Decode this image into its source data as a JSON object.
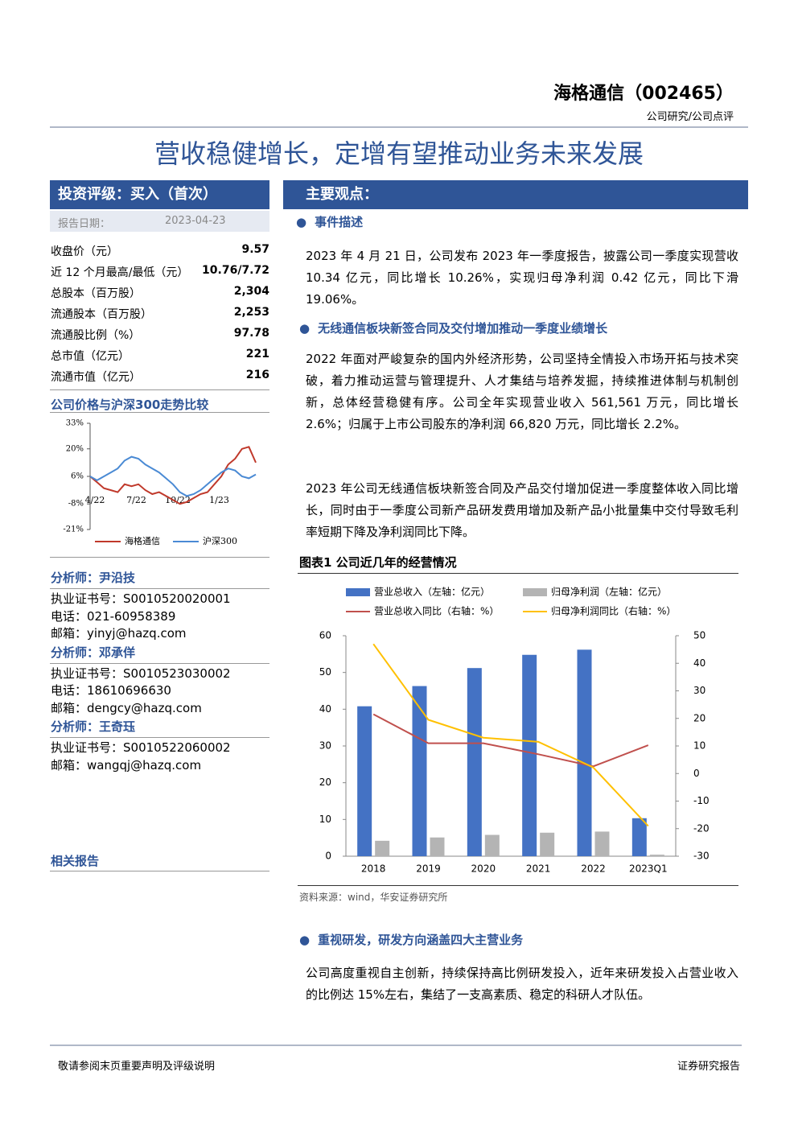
{
  "header": {
    "company": "海格通信（002465）",
    "category": "公司研究/公司点评",
    "title": "营收稳健增长，定增有望推动业务未来发展"
  },
  "sidebar": {
    "rating": "投资评级：买入（首次）",
    "report_date_label": "报告日期：",
    "report_date": "2023-04-23",
    "stats": [
      [
        "收盘价（元）",
        "9.57"
      ],
      [
        "近 12 个月最高/最低（元）",
        "10.76/7.72"
      ],
      [
        "总股本（百万股）",
        "2,304"
      ],
      [
        "流通股本（百万股）",
        "2,253"
      ],
      [
        "流通股比例（%）",
        "97.78"
      ],
      [
        "总市值（亿元）",
        "221"
      ],
      [
        "流通市值（亿元）",
        "216"
      ]
    ],
    "analysts": [
      {
        "heading": "分析师：尹沿技",
        "lines": [
          "执业证书号：S0010520020001",
          "电话：021-60958389",
          "邮箱：yinyj@hazq.com"
        ]
      },
      {
        "heading": "分析师：邓承佯",
        "lines": [
          "执业证书号：S0010523030002",
          "电话：18610696630",
          "邮箱：dengcy@hazq.com"
        ]
      },
      {
        "heading": "分析师：王奇珏",
        "lines": [
          "执业证书号：S0010522060002",
          "邮箱：wangqj@hazq.com"
        ]
      }
    ],
    "related": "相关报告"
  },
  "main": {
    "heading": "主要观点：",
    "sections": [
      {
        "heading": "事件描述",
        "paragraphs": [
          "2023 年 4 月 21 日，公司发布 2023 年一季度报告，披露公司一季度实现营收 10.34 亿元，同比增长 10.26%，实现归母净利润 0.42 亿元，同比下滑 19.06%。"
        ]
      },
      {
        "heading": "无线通信板块新签合同及交付增加推动一季度业绩增长",
        "paragraphs": [
          "2022 年面对严峻复杂的国内外经济形势，公司坚持全情投入市场开拓与技术突破，着力推动运营与管理提升、人才集结与培养发掘，持续推进体制与机制创新，总体经营稳健有序。公司全年实现营业收入 561,561 万元，同比增长 2.6%；归属于上市公司股东的净利润 66,820 万元，同比增长 2.2%。",
          "2023 年公司无线通信板块新签合同及产品交付增加促进一季度整体收入同比增长，同时由于一季度公司新产品研发费用增加及新产品小批量集中交付导致毛利率短期下降及净利润同比下降。"
        ]
      },
      {
        "heading": "重视研发，研发方向涵盖四大主营业务",
        "paragraphs": [
          "公司高度重视自主创新，持续保持高比例研发投入，近年来研发投入占营业收入的比例达 15%左右，集结了一支高素质、稳定的科研人才队伍。"
        ]
      }
    ]
  },
  "footer": {
    "left": "敬请参阅末页重要声明及评级说明",
    "right": "证券研究报告"
  },
  "chart_data": [
    {
      "type": "line",
      "title": "公司价格与沪深300走势比较",
      "x": [
        "4/22",
        null,
        null,
        null,
        null,
        null,
        "7/22",
        null,
        null,
        null,
        null,
        null,
        "10/22",
        null,
        null,
        null,
        null,
        null,
        "1/23",
        null,
        null,
        null,
        null,
        null,
        null
      ],
      "series": [
        {
          "name": "海格通信",
          "color": "#c0392b",
          "values": [
            6,
            3,
            0,
            -1,
            -2,
            2,
            1,
            2,
            -1,
            -3,
            -2,
            -4,
            -6,
            -8,
            -7,
            -5,
            -3,
            -2,
            2,
            6,
            12,
            15,
            20,
            21,
            13
          ]
        },
        {
          "name": "沪深300",
          "color": "#4a8ad4",
          "values": [
            6,
            4,
            6,
            8,
            10,
            14,
            16,
            15,
            12,
            10,
            8,
            5,
            2,
            -2,
            -4,
            -3,
            -1,
            2,
            5,
            8,
            10,
            9,
            6,
            5,
            7
          ]
        }
      ],
      "ylim": [
        -21,
        33
      ],
      "yticks": [
        {
          "value": -21,
          "label": "-21%"
        },
        {
          "value": -8,
          "label": "-8%"
        },
        {
          "value": 6,
          "label": "6%"
        },
        {
          "value": 20,
          "label": "20%"
        },
        {
          "value": 33,
          "label": "33%"
        }
      ]
    },
    {
      "type": "combo",
      "title": "图表1 公司近几年的经营情况",
      "source": "资料来源：wind，华安证券研究所",
      "categories": [
        "2018",
        "2019",
        "2020",
        "2021",
        "2022",
        "2023Q1"
      ],
      "series": [
        {
          "name": "营业总收入（左轴：亿元）",
          "type": "bar",
          "color": "#4472c4",
          "values": [
            40.8,
            46.3,
            51.2,
            54.8,
            56.2,
            10.34
          ]
        },
        {
          "name": "归母净利润（左轴：亿元）",
          "type": "bar",
          "color": "#b4b4b4",
          "values": [
            4.2,
            5.1,
            5.8,
            6.4,
            6.7,
            0.42
          ]
        },
        {
          "name": "营业总收入同比（右轴：%）",
          "type": "line",
          "axis": "y2",
          "color": "#c0504d",
          "values": [
            21.5,
            11,
            11,
            7,
            2.6,
            10.26
          ]
        },
        {
          "name": "归母净利润同比（右轴：%）",
          "type": "line",
          "axis": "y2",
          "color": "#ffc000",
          "values": [
            47,
            19.5,
            13,
            11.5,
            2.2,
            -19.06
          ]
        }
      ],
      "ylim": [
        0,
        60
      ],
      "yticks": [
        0,
        10,
        20,
        30,
        40,
        50,
        60
      ],
      "y2lim": [
        -30,
        50
      ],
      "y2ticks": [
        -30,
        -20,
        -10,
        0,
        10,
        20,
        30,
        40,
        50
      ]
    }
  ]
}
